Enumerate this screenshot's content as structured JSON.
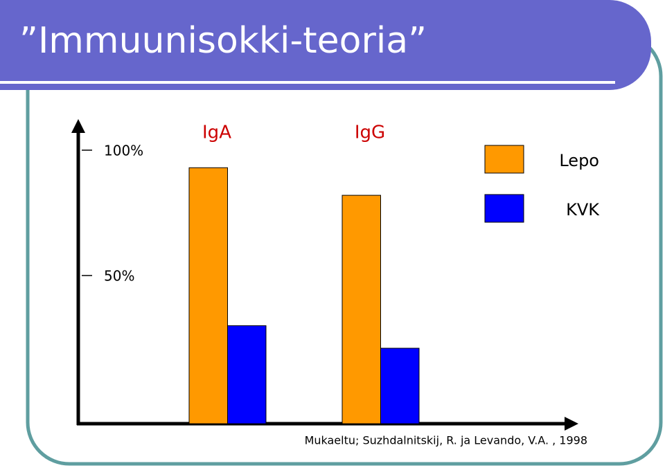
{
  "title": "”Immuunisokki-teoria”",
  "chart_data": {
    "type": "bar",
    "categories": [
      "IgA",
      "IgG"
    ],
    "series": [
      {
        "name": "Lepo",
        "color": "#ff9900",
        "values": [
          93,
          82
        ]
      },
      {
        "name": "KVK",
        "color": "#0000ff",
        "values": [
          30,
          21
        ]
      }
    ],
    "ylim": [
      -9.1,
      112.4
    ],
    "yticks": [
      {
        "value": 50,
        "label": "50%"
      },
      {
        "value": 100,
        "label": "100%"
      }
    ],
    "legend": "top-right",
    "source": "Mukaeltu; Suzhdalnitskij, R. ja Levando, V.A. , 1998"
  }
}
